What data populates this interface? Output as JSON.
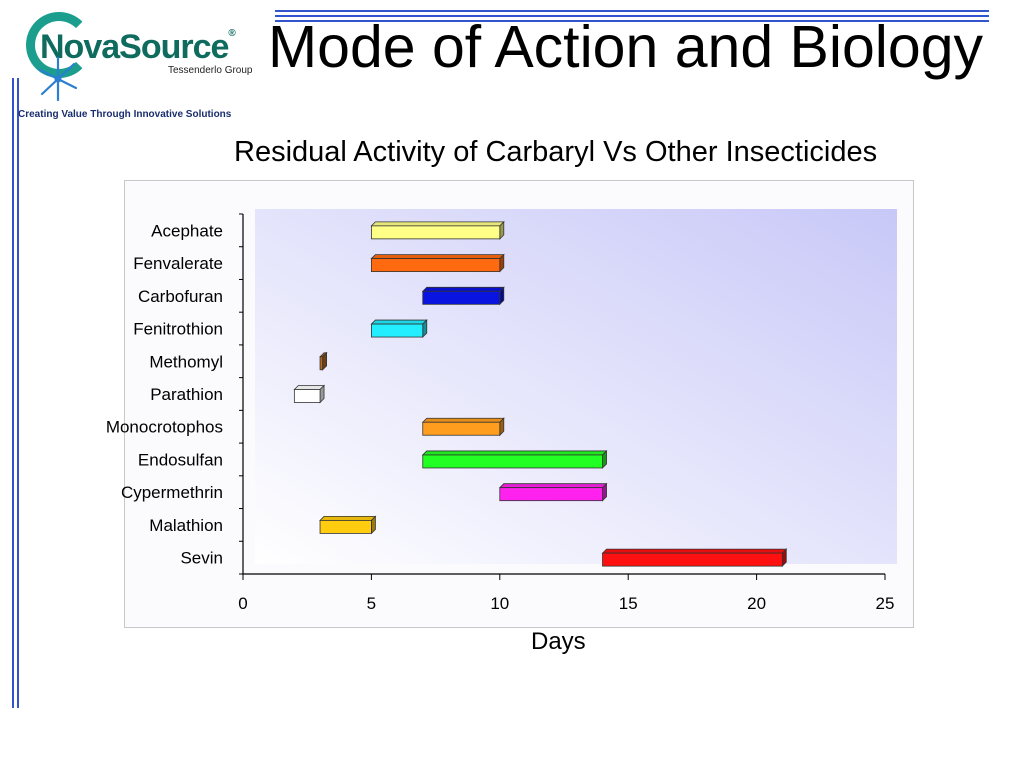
{
  "slide": {
    "title": "Mode of Action and Biology",
    "tagline": "Creating Value Through Innovative Solutions",
    "logo": {
      "wordmark": "NovaSource",
      "registered": "®",
      "subline": "Tessenderlo Group"
    }
  },
  "colors": {
    "rule": "#3355cc",
    "logo_teal": "#1b9e8e",
    "plot_bg_light": "#ffffff",
    "plot_bg_dark": "#c8c8f8"
  },
  "chart_data": {
    "type": "bar",
    "orientation": "horizontal-range",
    "title": "Residual Activity of Carbaryl Vs Other Insecticides",
    "xlabel": "Days",
    "ylabel": "",
    "xlim": [
      0,
      25
    ],
    "xticks": [
      0,
      5,
      10,
      15,
      20,
      25
    ],
    "grid": false,
    "bars": [
      {
        "label": "Acephate",
        "start": 5,
        "end": 10,
        "color": "#ffff88"
      },
      {
        "label": "Fenvalerate",
        "start": 5,
        "end": 10,
        "color": "#ff6a10"
      },
      {
        "label": "Carbofuran",
        "start": 7,
        "end": 10,
        "color": "#0a14e0"
      },
      {
        "label": "Fenitrothion",
        "start": 5,
        "end": 7,
        "color": "#22eeff"
      },
      {
        "label": "Methomyl",
        "start": 3,
        "end": 3.1,
        "color": "#b86a20"
      },
      {
        "label": "Parathion",
        "start": 2,
        "end": 3,
        "color": "#ffffff"
      },
      {
        "label": "Monocrotophos",
        "start": 7,
        "end": 10,
        "color": "#ff9e1e"
      },
      {
        "label": "Endosulfan",
        "start": 7,
        "end": 14,
        "color": "#22ff22"
      },
      {
        "label": "Cypermethrin",
        "start": 10,
        "end": 14,
        "color": "#ff22ee"
      },
      {
        "label": "Malathion",
        "start": 3,
        "end": 5,
        "color": "#ffcc10"
      },
      {
        "label": "Sevin",
        "start": 14,
        "end": 21,
        "color": "#ff1010"
      }
    ]
  }
}
